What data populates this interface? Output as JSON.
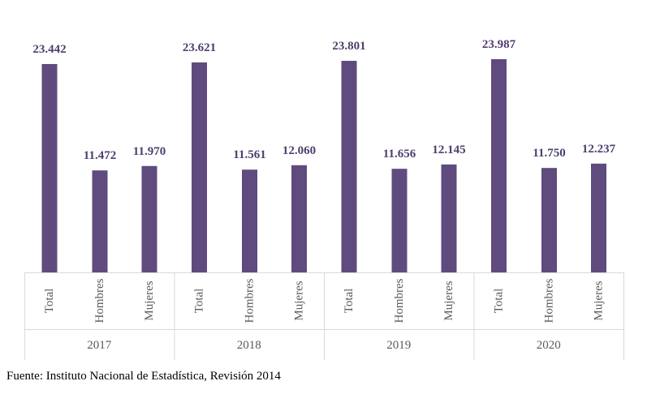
{
  "chart_data": {
    "type": "bar",
    "groups": [
      "2017",
      "2018",
      "2019",
      "2020"
    ],
    "categories": [
      "Total",
      "Hombres",
      "Mujeres"
    ],
    "values": [
      [
        23442,
        11472,
        11970
      ],
      [
        23621,
        11561,
        12060
      ],
      [
        23801,
        11656,
        12145
      ],
      [
        23987,
        11750,
        12237
      ]
    ],
    "value_labels": [
      [
        "23.442",
        "11.472",
        "11.970"
      ],
      [
        "23.621",
        "11.561",
        "12.060"
      ],
      [
        "23.801",
        "11.656",
        "12.145"
      ],
      [
        "23.987",
        "11.750",
        "12.237"
      ]
    ],
    "ylim": [
      0,
      25000
    ],
    "grid": false,
    "legend": "none",
    "bar_color": "#5f4b7e",
    "label_color": "#4e3e6e"
  },
  "source": "Fuente: Instituto Nacional de Estadística, Revisión 2014"
}
